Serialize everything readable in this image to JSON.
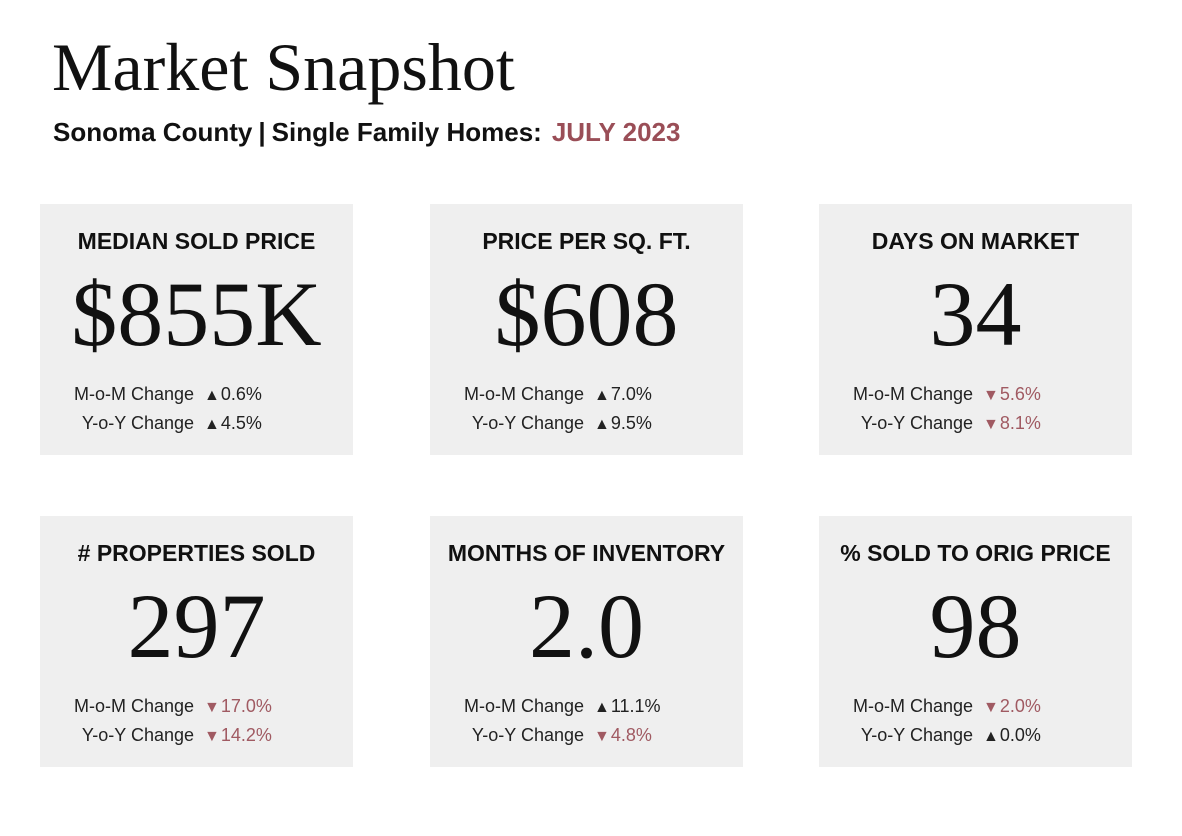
{
  "title": "Market Snapshot",
  "subtitle": {
    "location": "Sonoma County",
    "separator": "|",
    "segment": "Single Family Homes:",
    "month": "JULY 2023"
  },
  "colors": {
    "accent": "#9a4e57",
    "down": "#a05a62",
    "card_bg": "#efefef"
  },
  "cards": [
    {
      "label": "MEDIAN SOLD PRICE",
      "value": "$855K",
      "mom_label": "M-o-M Change",
      "mom_arrow": "▲",
      "mom_value": "0.6%",
      "yoy_label": "Y-o-Y Change",
      "yoy_arrow": "▲",
      "yoy_value": "4.5%"
    },
    {
      "label": "PRICE PER SQ. FT.",
      "value": "$608",
      "mom_label": "M-o-M Change",
      "mom_arrow": "▲",
      "mom_value": "7.0%",
      "yoy_label": "Y-o-Y Change",
      "yoy_arrow": "▲",
      "yoy_value": "9.5%"
    },
    {
      "label": "DAYS ON MARKET",
      "value": "34",
      "mom_label": "M-o-M Change",
      "mom_arrow": "▼",
      "mom_value": "5.6%",
      "yoy_label": "Y-o-Y Change",
      "yoy_arrow": "▼",
      "yoy_value": "8.1%"
    },
    {
      "label": "# PROPERTIES SOLD",
      "value": "297",
      "mom_label": "M-o-M Change",
      "mom_arrow": "▼",
      "mom_value": "17.0%",
      "yoy_label": "Y-o-Y Change",
      "yoy_arrow": "▼",
      "yoy_value": "14.2%"
    },
    {
      "label": "MONTHS OF INVENTORY",
      "value": "2.0",
      "mom_label": "M-o-M Change",
      "mom_arrow": "▲",
      "mom_value": "11.1%",
      "yoy_label": "Y-o-Y Change",
      "yoy_arrow": "▼",
      "yoy_value": "4.8%"
    },
    {
      "label": "% SOLD TO ORIG PRICE",
      "value": "98",
      "mom_label": "M-o-M Change",
      "mom_arrow": "▼",
      "mom_value": "2.0%",
      "yoy_label": "Y-o-Y Change",
      "yoy_arrow": "▲",
      "yoy_value": "0.0%"
    }
  ]
}
